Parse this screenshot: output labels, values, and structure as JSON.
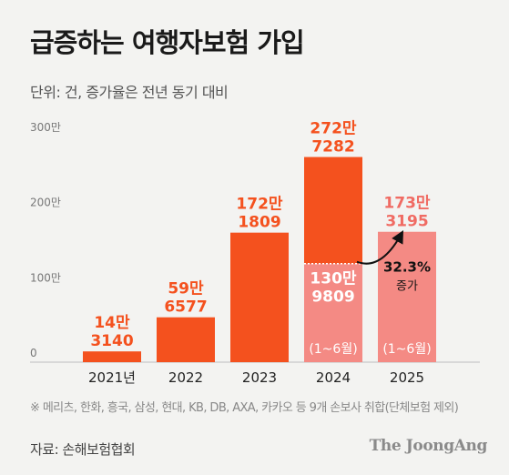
{
  "title": "급증하는 여행자보험 가입",
  "subtitle": "단위: 건, 증가율은 전년 동기 대비",
  "footnote": "※ 메리츠, 한화, 흥국, 삼성, 현대, KB, DB, AXA, 카카오 등 9개 손보사 취합(단체보험 제외)",
  "source": "자료: 손해보험협회",
  "brand": "The JoongAng",
  "colors": {
    "full_year": "#f4511e",
    "partial_year": "#f48a84",
    "axis": "#cfcfcf",
    "label": "#f4511e",
    "partial_label": "#f06b63"
  },
  "chart_data": {
    "type": "bar",
    "title": "급증하는 여행자보험 가입",
    "categories": [
      "2021년",
      "2022",
      "2023",
      "2024",
      "2025"
    ],
    "values": [
      143140,
      596577,
      1721809,
      2727282,
      1733195
    ],
    "value_labels": [
      [
        "14만",
        "3140"
      ],
      [
        "59만",
        "6577"
      ],
      [
        "172만",
        "1809"
      ],
      [
        "272만",
        "7282"
      ],
      [
        "173만",
        "3195"
      ]
    ],
    "ylim": [
      0,
      3000000
    ],
    "yticks": [
      {
        "value": 0,
        "label": "0"
      },
      {
        "value": 1000000,
        "label": "100만"
      },
      {
        "value": 2000000,
        "label": "200만"
      },
      {
        "value": 3000000,
        "label": "300만"
      }
    ],
    "partial_series": {
      "period_label": "(1~6월)",
      "overlay": {
        "category": "2024",
        "value": 1309809,
        "label": [
          "130만",
          "9809"
        ]
      },
      "bar": {
        "category": "2025",
        "value": 1733195
      }
    },
    "annotation": {
      "percent": "32.3%",
      "text": "증가"
    },
    "grid": false
  }
}
